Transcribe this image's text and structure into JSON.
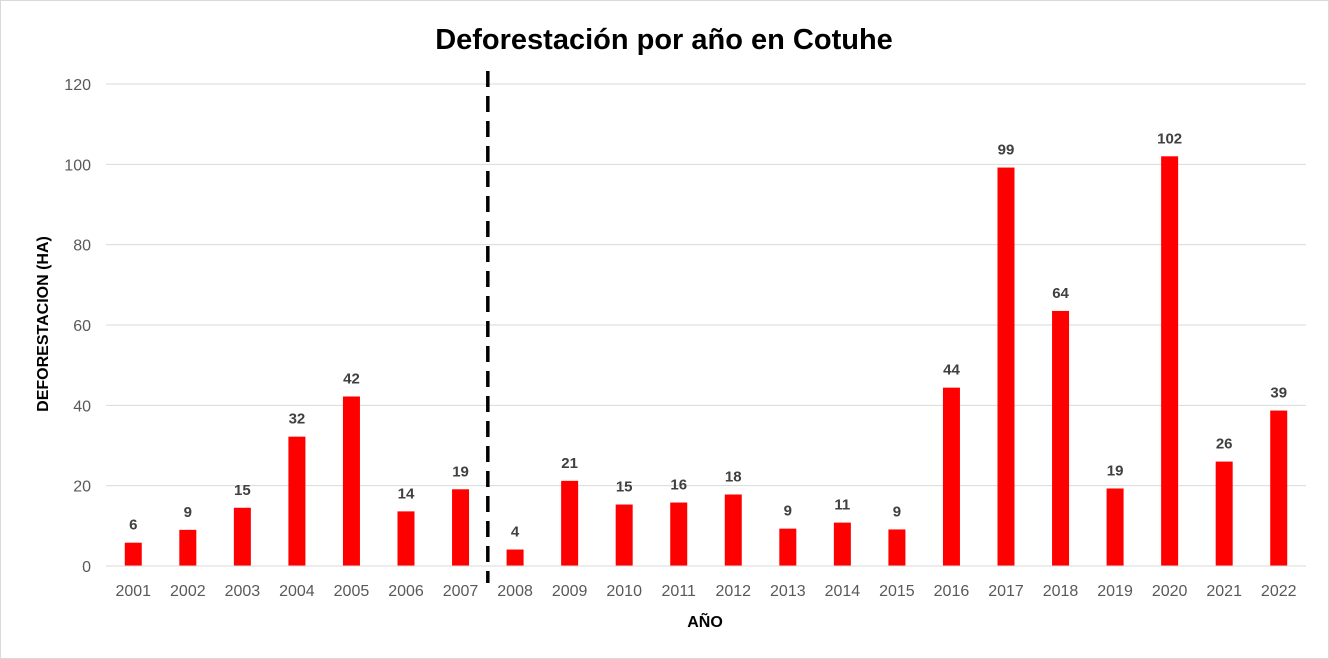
{
  "chart_data": {
    "type": "bar",
    "title": "Deforestación por año en Cotuhe",
    "xlabel": "AÑO",
    "ylabel": "DEFORESTACION (HA)",
    "categories": [
      "2001",
      "2002",
      "2003",
      "2004",
      "2005",
      "2006",
      "2007",
      "2008",
      "2009",
      "2010",
      "2011",
      "2012",
      "2013",
      "2014",
      "2015",
      "2016",
      "2017",
      "2018",
      "2019",
      "2020",
      "2021",
      "2022"
    ],
    "values": [
      5.8,
      9,
      14.5,
      32.2,
      42.2,
      13.6,
      19.1,
      4.1,
      21.2,
      15.3,
      15.8,
      17.8,
      9.3,
      10.8,
      9.1,
      44.4,
      99.2,
      63.5,
      19.3,
      102,
      26,
      38.7
    ],
    "data_labels": [
      "6",
      "9",
      "15",
      "32",
      "42",
      "14",
      "19",
      "4",
      "21",
      "15",
      "16",
      "18",
      "9",
      "11",
      "9",
      "44",
      "99",
      "64",
      "19",
      "102",
      "26",
      "39"
    ],
    "ylim": [
      0,
      120
    ],
    "yticks": [
      0,
      20,
      40,
      60,
      80,
      100,
      120
    ],
    "bar_color": "#FF0000",
    "grid": true,
    "legend": "none",
    "reference_line": {
      "between": [
        "2007",
        "2008"
      ],
      "style": "dashed",
      "color": "#000000"
    }
  }
}
